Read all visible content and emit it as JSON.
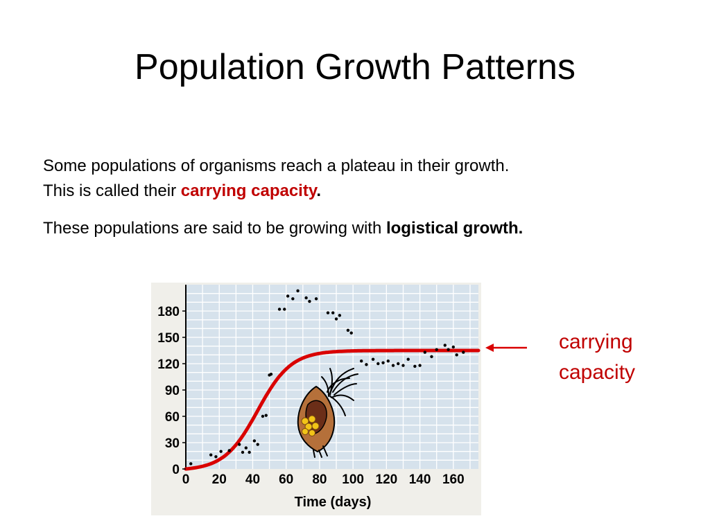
{
  "slide": {
    "title": "Population Growth Patterns",
    "paragraph1": {
      "line1": "Some populations of organisms reach a plateau in their growth.",
      "line2_prefix": "This is called their ",
      "line2_highlight": "carrying capacity",
      "line2_suffix": "."
    },
    "paragraph2": {
      "prefix": "These populations are said to be growing with ",
      "bold": "logistical growth."
    },
    "annotation": {
      "line1": "carrying",
      "line2": "capacity"
    }
  },
  "colors": {
    "accent_red": "#c00000",
    "plot_background": "#d6e2ec",
    "curve": "#d90000",
    "points": "#000000"
  },
  "icons": [
    "organism-illustration",
    "arrow-left-icon"
  ],
  "chart_data": {
    "type": "scatter",
    "xlabel": "Time (days)",
    "ylabel": "",
    "xlim": [
      0,
      175
    ],
    "ylim": [
      0,
      210
    ],
    "x_ticks": [
      0,
      20,
      40,
      60,
      80,
      100,
      120,
      140,
      160
    ],
    "y_ticks": [
      0,
      30,
      60,
      90,
      120,
      150,
      180
    ],
    "grid": true,
    "series": [
      {
        "kind": "points",
        "points": [
          [
            3,
            6
          ],
          [
            15,
            16
          ],
          [
            18,
            14
          ],
          [
            21,
            20
          ],
          [
            26,
            21
          ],
          [
            32,
            28
          ],
          [
            34,
            19
          ],
          [
            36,
            24
          ],
          [
            38,
            19
          ],
          [
            41,
            32
          ],
          [
            43,
            28
          ],
          [
            46,
            60
          ],
          [
            48,
            61
          ],
          [
            50,
            107
          ],
          [
            51,
            108
          ],
          [
            56,
            182
          ],
          [
            59,
            182
          ],
          [
            61,
            197
          ],
          [
            64,
            194
          ],
          [
            67,
            203
          ],
          [
            72,
            195
          ],
          [
            74,
            191
          ],
          [
            78,
            194
          ],
          [
            85,
            178
          ],
          [
            88,
            178
          ],
          [
            90,
            171
          ],
          [
            92,
            175
          ],
          [
            97,
            158
          ],
          [
            99,
            155
          ],
          [
            105,
            123
          ],
          [
            108,
            119
          ],
          [
            112,
            125
          ],
          [
            115,
            120
          ],
          [
            118,
            121
          ],
          [
            121,
            123
          ],
          [
            124,
            118
          ],
          [
            127,
            120
          ],
          [
            130,
            118
          ],
          [
            133,
            125
          ],
          [
            137,
            117
          ],
          [
            140,
            118
          ],
          [
            143,
            133
          ],
          [
            147,
            128
          ],
          [
            150,
            136
          ],
          [
            155,
            141
          ],
          [
            157,
            136
          ],
          [
            160,
            139
          ],
          [
            162,
            130
          ],
          [
            166,
            133
          ]
        ]
      },
      {
        "kind": "logistic-curve",
        "carrying_capacity": 135,
        "midpoint_day": 43,
        "rate": 0.1,
        "x_start": 0,
        "x_end": 175
      }
    ]
  }
}
